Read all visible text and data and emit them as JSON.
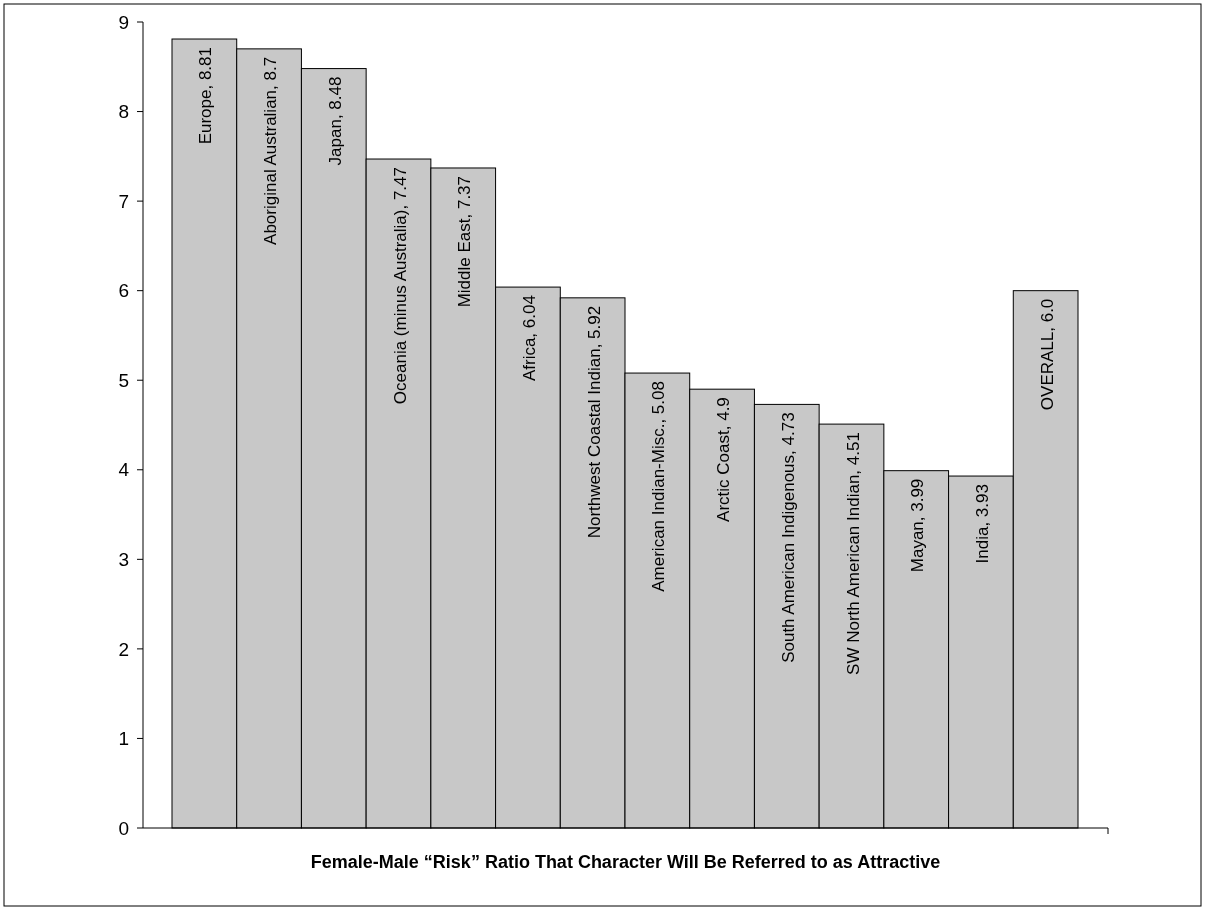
{
  "chart_data": {
    "type": "bar",
    "xlabel": "Female-Male “Risk” Ratio That Character Will Be Referred to as Attractive",
    "categories": [
      "Europe, 8.81",
      "Aboriginal Australian, 8.7",
      "Japan, 8.48",
      "Oceania (minus Australia), 7.47",
      "Middle East, 7.37",
      "Africa, 6.04",
      "Northwest Coastal Indian, 5.92",
      "American Indian-Misc., 5.08",
      "Arctic Coast, 4.9",
      "South American Indigenous, 4.73",
      "SW North American Indian, 4.51",
      "Mayan, 3.99",
      "India, 3.93",
      "OVERALL, 6.0"
    ],
    "values": [
      8.81,
      8.7,
      8.48,
      7.47,
      7.37,
      6.04,
      5.92,
      5.08,
      4.9,
      4.73,
      4.51,
      3.99,
      3.93,
      6.0
    ],
    "color": "#c8c8c8",
    "ylim": [
      0,
      9
    ],
    "yticks": [
      0,
      1,
      2,
      3,
      4,
      5,
      6,
      7,
      8,
      9
    ],
    "grid": false
  }
}
